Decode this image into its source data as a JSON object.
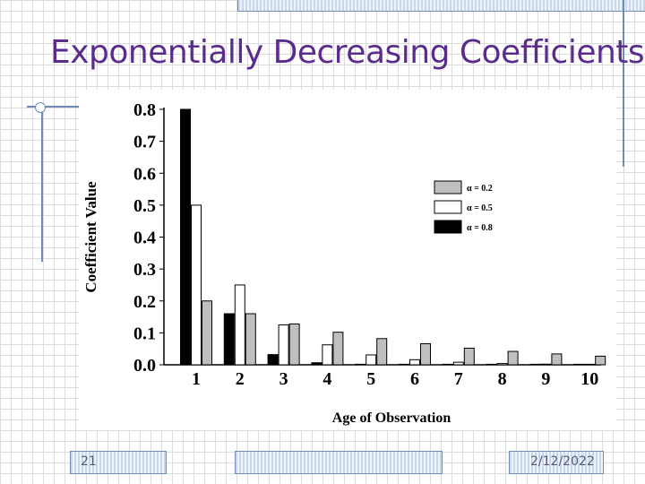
{
  "slide": {
    "title": "Exponentially Decreasing Coefficients",
    "page_number": "21",
    "date": "2/12/2022"
  },
  "colors": {
    "title": "#5a2d8c",
    "series": [
      "#bfbfbf",
      "#ffffff",
      "#000000"
    ]
  },
  "chart_data": {
    "type": "bar",
    "title": "",
    "xlabel": "Age of Observation",
    "ylabel": "Coefficient Value",
    "categories": [
      "1",
      "2",
      "3",
      "4",
      "5",
      "6",
      "7",
      "8",
      "9",
      "10"
    ],
    "ylim": [
      0,
      0.8
    ],
    "yticks": [
      "0.0",
      "0.1",
      "0.2",
      "0.3",
      "0.4",
      "0.5",
      "0.6",
      "0.7",
      "0.8"
    ],
    "legend_position": "right",
    "series": [
      {
        "name": "α = 0.2",
        "values": [
          0.2,
          0.16,
          0.128,
          0.102,
          0.082,
          0.066,
          0.052,
          0.042,
          0.034,
          0.027
        ]
      },
      {
        "name": "α = 0.5",
        "values": [
          0.5,
          0.25,
          0.125,
          0.0625,
          0.031,
          0.016,
          0.008,
          0.004,
          0.002,
          0.001
        ]
      },
      {
        "name": "α = 0.8",
        "values": [
          0.8,
          0.16,
          0.032,
          0.0064,
          0.0013,
          0.0003,
          0.0001,
          0.0,
          0.0,
          0.0
        ]
      }
    ]
  }
}
